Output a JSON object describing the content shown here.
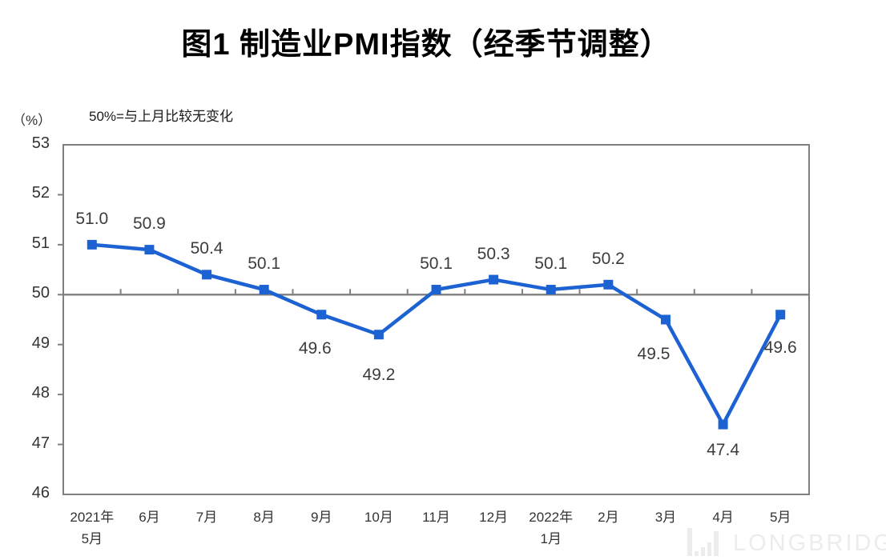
{
  "header": {
    "title": "图1 制造业PMI指数（经季节调整）"
  },
  "chart_data": {
    "type": "line",
    "title": "图1 制造业PMI指数（经季节调整）",
    "unit_label": "（%）",
    "annotation": "50%=与上月比较无变化",
    "categories": [
      {
        "line1": "2021年",
        "line2": "5月"
      },
      {
        "line1": "6月",
        "line2": ""
      },
      {
        "line1": "7月",
        "line2": ""
      },
      {
        "line1": "8月",
        "line2": ""
      },
      {
        "line1": "9月",
        "line2": ""
      },
      {
        "line1": "10月",
        "line2": ""
      },
      {
        "line1": "11月",
        "line2": ""
      },
      {
        "line1": "12月",
        "line2": ""
      },
      {
        "line1": "2022年",
        "line2": "1月"
      },
      {
        "line1": "2月",
        "line2": ""
      },
      {
        "line1": "3月",
        "line2": ""
      },
      {
        "line1": "4月",
        "line2": ""
      },
      {
        "line1": "5月",
        "line2": ""
      }
    ],
    "values": [
      51.0,
      50.9,
      50.4,
      50.1,
      49.6,
      49.2,
      50.1,
      50.3,
      50.1,
      50.2,
      49.5,
      47.4,
      49.6
    ],
    "point_labels": [
      "51.0",
      "50.9",
      "50.4",
      "50.1",
      "49.6",
      "49.2",
      "50.1",
      "50.3",
      "50.1",
      "50.2",
      "49.5",
      "47.4",
      "49.6"
    ],
    "ylim": [
      46,
      53
    ],
    "yticks": [
      46,
      47,
      48,
      49,
      50,
      51,
      52,
      53
    ],
    "reference_line": 50,
    "grid": "off",
    "legend": "none",
    "tick_style": "between-categories",
    "marker": "square",
    "line_color": "#1c62d2",
    "axis_color": "#7f7f7f",
    "label_color": "#3c3c3c"
  },
  "watermark": {
    "text": "LONGBRIDGE",
    "logo": "longbridge-bars-logo",
    "color": "#ececec"
  }
}
